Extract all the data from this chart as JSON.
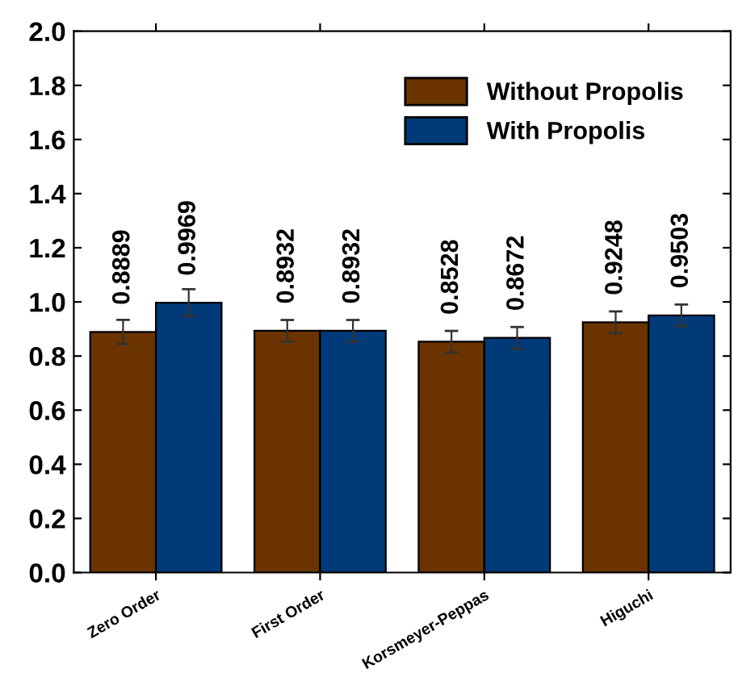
{
  "chart_data": {
    "type": "bar",
    "categories": [
      "Zero Order",
      "First Order",
      "Korsmeyer-Peppas",
      "Higuchi"
    ],
    "series": [
      {
        "name": "Without Propolis",
        "color": "#6b3300",
        "values": [
          0.8889,
          0.8932,
          0.8528,
          0.9248
        ],
        "errors": [
          0.045,
          0.04,
          0.04,
          0.04
        ]
      },
      {
        "name": "With Propolis",
        "color": "#003a78",
        "values": [
          0.9969,
          0.8932,
          0.8672,
          0.9503
        ],
        "errors": [
          0.05,
          0.04,
          0.04,
          0.04
        ]
      }
    ],
    "ylim": [
      0,
      2.0
    ],
    "yticks": [
      {
        "value": 0,
        "label": "0.0"
      },
      0.2,
      0.4,
      0.6,
      0.8,
      {
        "value": 1,
        "label": "1.0"
      },
      1.2,
      1.4,
      1.6,
      1.8,
      {
        "value": 2,
        "label": "2.0"
      }
    ],
    "data_labels": true,
    "legend": "top right",
    "grid": false
  }
}
